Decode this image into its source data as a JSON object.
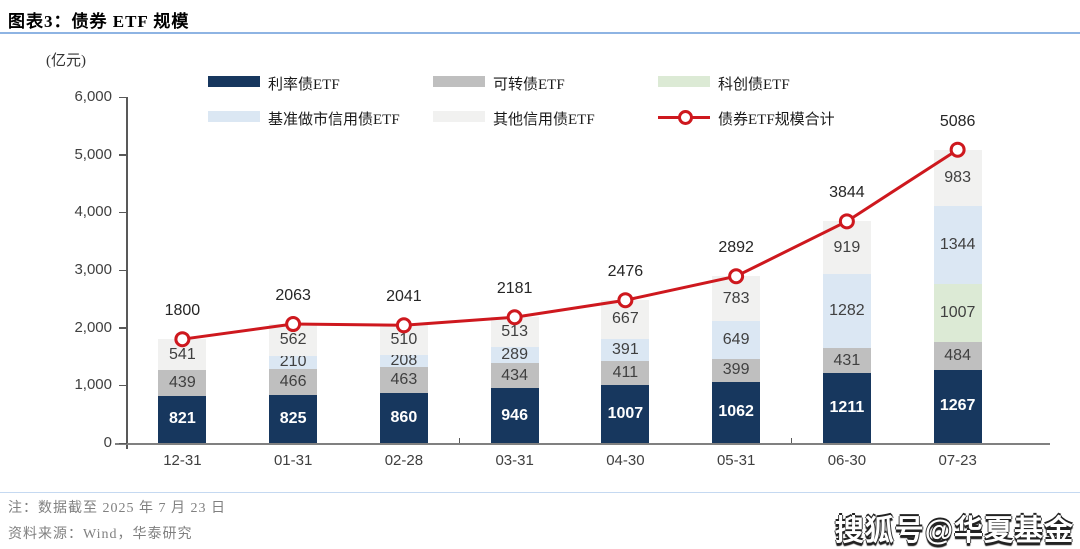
{
  "header": {
    "label": "图表3：",
    "title": "债券 ETF 规模"
  },
  "chart_data": {
    "type": "stacked-bar-line",
    "unit_label": "(亿元)",
    "categories": [
      "12-31",
      "01-31",
      "02-28",
      "03-31",
      "04-30",
      "05-31",
      "06-30",
      "07-23"
    ],
    "series": [
      {
        "name": "利率债ETF",
        "color": "#17375E",
        "label_color": "#FFFFFF",
        "label_bold": true,
        "values": [
          821,
          825,
          860,
          946,
          1007,
          1062,
          1211,
          1267
        ]
      },
      {
        "name": "可转债ETF",
        "color": "#BFBFBF",
        "label_color": "#404040",
        "label_bold": false,
        "values": [
          439,
          466,
          463,
          434,
          411,
          399,
          431,
          484
        ]
      },
      {
        "name": "科创债ETF",
        "color": "#DCEAD5",
        "label_color": "#404040",
        "label_bold": false,
        "values": [
          0,
          0,
          0,
          0,
          0,
          0,
          0,
          1007
        ]
      },
      {
        "name": "基准做市信用债ETF",
        "color": "#DBE7F3",
        "label_color": "#404040",
        "label_bold": false,
        "values": [
          0,
          210,
          208,
          289,
          391,
          649,
          1282,
          1344
        ]
      },
      {
        "name": "其他信用债ETF",
        "color": "#F1F1F0",
        "label_color": "#404040",
        "label_bold": false,
        "values": [
          541,
          562,
          510,
          513,
          667,
          783,
          919,
          983
        ]
      }
    ],
    "line": {
      "name": "债券ETF规模合计",
      "color": "#CE181E",
      "values": [
        1800,
        2063,
        2041,
        2181,
        2476,
        2892,
        3844,
        5086
      ]
    },
    "y_axis": {
      "min": 0,
      "max": 6000,
      "tick_step": 1000,
      "tick_labels": [
        "0",
        "1,000",
        "2,000",
        "3,000",
        "4,000",
        "5,000",
        "6,000"
      ]
    },
    "legend_position": "top",
    "grid": false
  },
  "footer": {
    "note": "注：数据截至 2025 年 7 月 23 日",
    "source": "资料来源：Wind，华泰研究"
  },
  "watermark": "搜狐号@华夏基金"
}
